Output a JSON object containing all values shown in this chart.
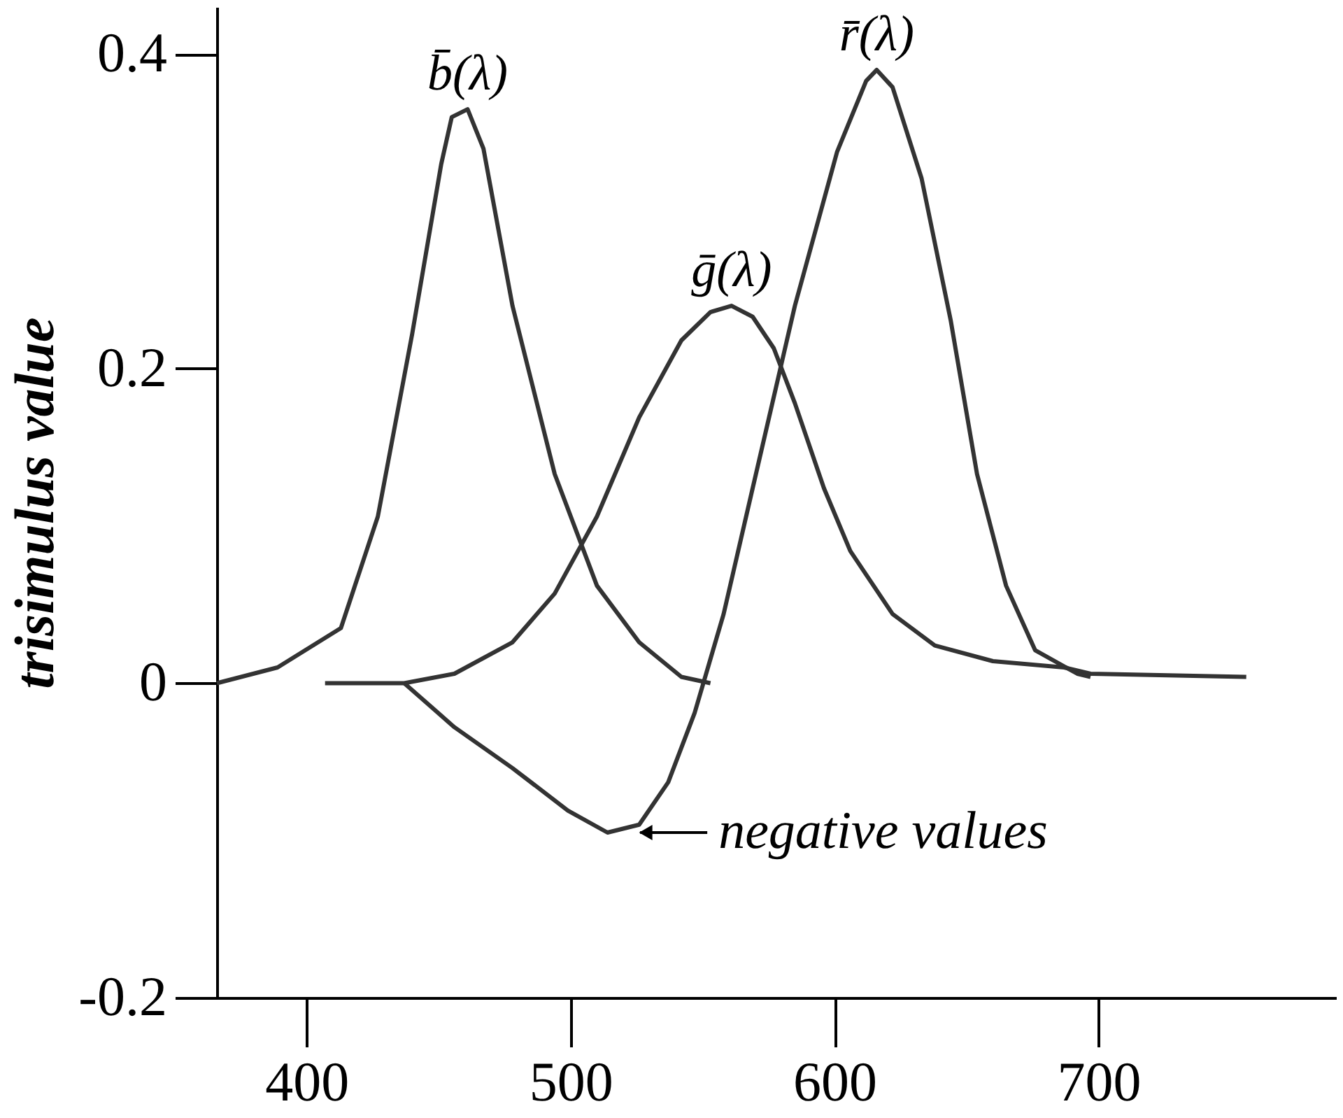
{
  "chart_data": {
    "type": "line",
    "ylabel": "trisimulus value",
    "xlim": [
      366,
      790
    ],
    "ylim": [
      -0.2,
      0.43
    ],
    "xticks": [
      400,
      500,
      600,
      700
    ],
    "yticks": [
      -0.2,
      0,
      0.2,
      0.4
    ],
    "grid": false,
    "marker": "none",
    "line_style": "solid",
    "series": [
      {
        "name": "b̄(λ)",
        "color": "#333333",
        "x": [
          366,
          389,
          413,
          427,
          440,
          451,
          455,
          461,
          467,
          478,
          494,
          510,
          526,
          542,
          553
        ],
        "values": [
          0.0,
          0.01,
          0.035,
          0.106,
          0.222,
          0.33,
          0.36,
          0.365,
          0.34,
          0.24,
          0.133,
          0.062,
          0.026,
          0.004,
          0.0
        ]
      },
      {
        "name": "ḡ(λ)",
        "color": "#333333",
        "x": [
          407,
          437,
          456,
          478,
          494,
          510,
          526,
          542,
          553,
          561,
          569,
          577,
          585,
          596,
          606,
          622,
          638,
          660,
          687,
          697,
          756
        ],
        "values": [
          0.0,
          0.0,
          0.006,
          0.026,
          0.057,
          0.106,
          0.169,
          0.218,
          0.236,
          0.24,
          0.233,
          0.213,
          0.178,
          0.124,
          0.084,
          0.044,
          0.024,
          0.014,
          0.01,
          0.006,
          0.004
        ]
      },
      {
        "name": "r̄(λ)",
        "color": "#333333",
        "x": [
          437,
          456,
          478,
          499,
          514,
          526,
          537,
          547,
          558,
          569,
          585,
          601,
          612,
          616,
          622,
          633,
          644,
          654,
          665,
          676,
          692,
          697
        ],
        "values": [
          0.0,
          -0.028,
          -0.054,
          -0.081,
          -0.095,
          -0.09,
          -0.063,
          -0.019,
          0.044,
          0.124,
          0.24,
          0.338,
          0.383,
          0.39,
          0.379,
          0.321,
          0.231,
          0.133,
          0.062,
          0.021,
          0.006,
          0.004
        ]
      }
    ],
    "annotations": [
      {
        "text": "negative values",
        "x": 520,
        "y": -0.095
      }
    ]
  }
}
